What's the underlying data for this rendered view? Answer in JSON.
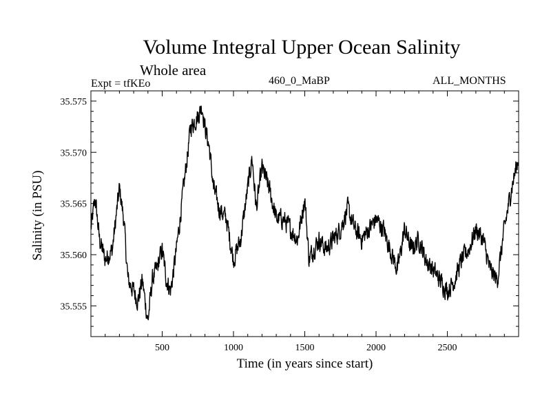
{
  "chart_data": {
    "type": "line",
    "title": "Volume Integral Upper Ocean Salinity",
    "subtitle": "Whole area",
    "annotations": {
      "experiment": "Expt = tfKEo",
      "period": "460_0_MaBP",
      "months": "ALL_MONTHS"
    },
    "xlabel": "Time (in years since start)",
    "ylabel": "Salinity (in PSU)",
    "xlim": [
      0,
      3000
    ],
    "ylim": [
      35.552,
      35.576
    ],
    "x_ticks": [
      500,
      1000,
      1500,
      2000,
      2500
    ],
    "x_tick_labels": [
      "500",
      "1000",
      "1500",
      "2000",
      "2500"
    ],
    "y_ticks": [
      35.555,
      35.56,
      35.565,
      35.57,
      35.575
    ],
    "y_tick_labels": [
      "35.555",
      "35.560",
      "35.565",
      "35.570",
      "35.575"
    ],
    "grid": false,
    "series": [
      {
        "color": "#000000",
        "x": [
          0,
          30,
          60,
          100,
          150,
          200,
          230,
          260,
          300,
          330,
          360,
          400,
          430,
          460,
          500,
          530,
          560,
          600,
          650,
          700,
          750,
          780,
          800,
          830,
          860,
          900,
          950,
          1000,
          1050,
          1100,
          1130,
          1160,
          1200,
          1250,
          1300,
          1350,
          1400,
          1450,
          1500,
          1530,
          1560,
          1600,
          1650,
          1700,
          1750,
          1800,
          1850,
          1900,
          1950,
          2000,
          2050,
          2100,
          2150,
          2200,
          2250,
          2300,
          2350,
          2400,
          2450,
          2500,
          2550,
          2600,
          2650,
          2700,
          2750,
          2800,
          2850,
          2900,
          2950,
          3000
        ],
        "y": [
          35.5625,
          35.5655,
          35.5615,
          35.5595,
          35.5605,
          35.5665,
          35.5635,
          35.5575,
          35.5565,
          35.5555,
          35.5575,
          35.5535,
          35.5575,
          35.5585,
          35.5605,
          35.5575,
          35.5565,
          35.5605,
          35.5665,
          35.5725,
          35.5735,
          35.5745,
          35.5725,
          35.5705,
          35.5665,
          35.5645,
          35.5635,
          35.5595,
          35.5615,
          35.5665,
          35.5695,
          35.5645,
          35.5685,
          35.5665,
          35.5635,
          35.5635,
          35.5625,
          35.5615,
          35.5655,
          35.5595,
          35.5605,
          35.5615,
          35.5605,
          35.5615,
          35.5625,
          35.5645,
          35.5625,
          35.5615,
          35.5625,
          35.5635,
          35.5625,
          35.5605,
          35.5585,
          35.5625,
          35.5605,
          35.5615,
          35.5595,
          35.5585,
          35.5575,
          35.5565,
          35.5575,
          35.5595,
          35.5605,
          35.5625,
          35.5615,
          35.5585,
          35.5575,
          35.5625,
          35.5665,
          35.5695
        ]
      }
    ]
  }
}
